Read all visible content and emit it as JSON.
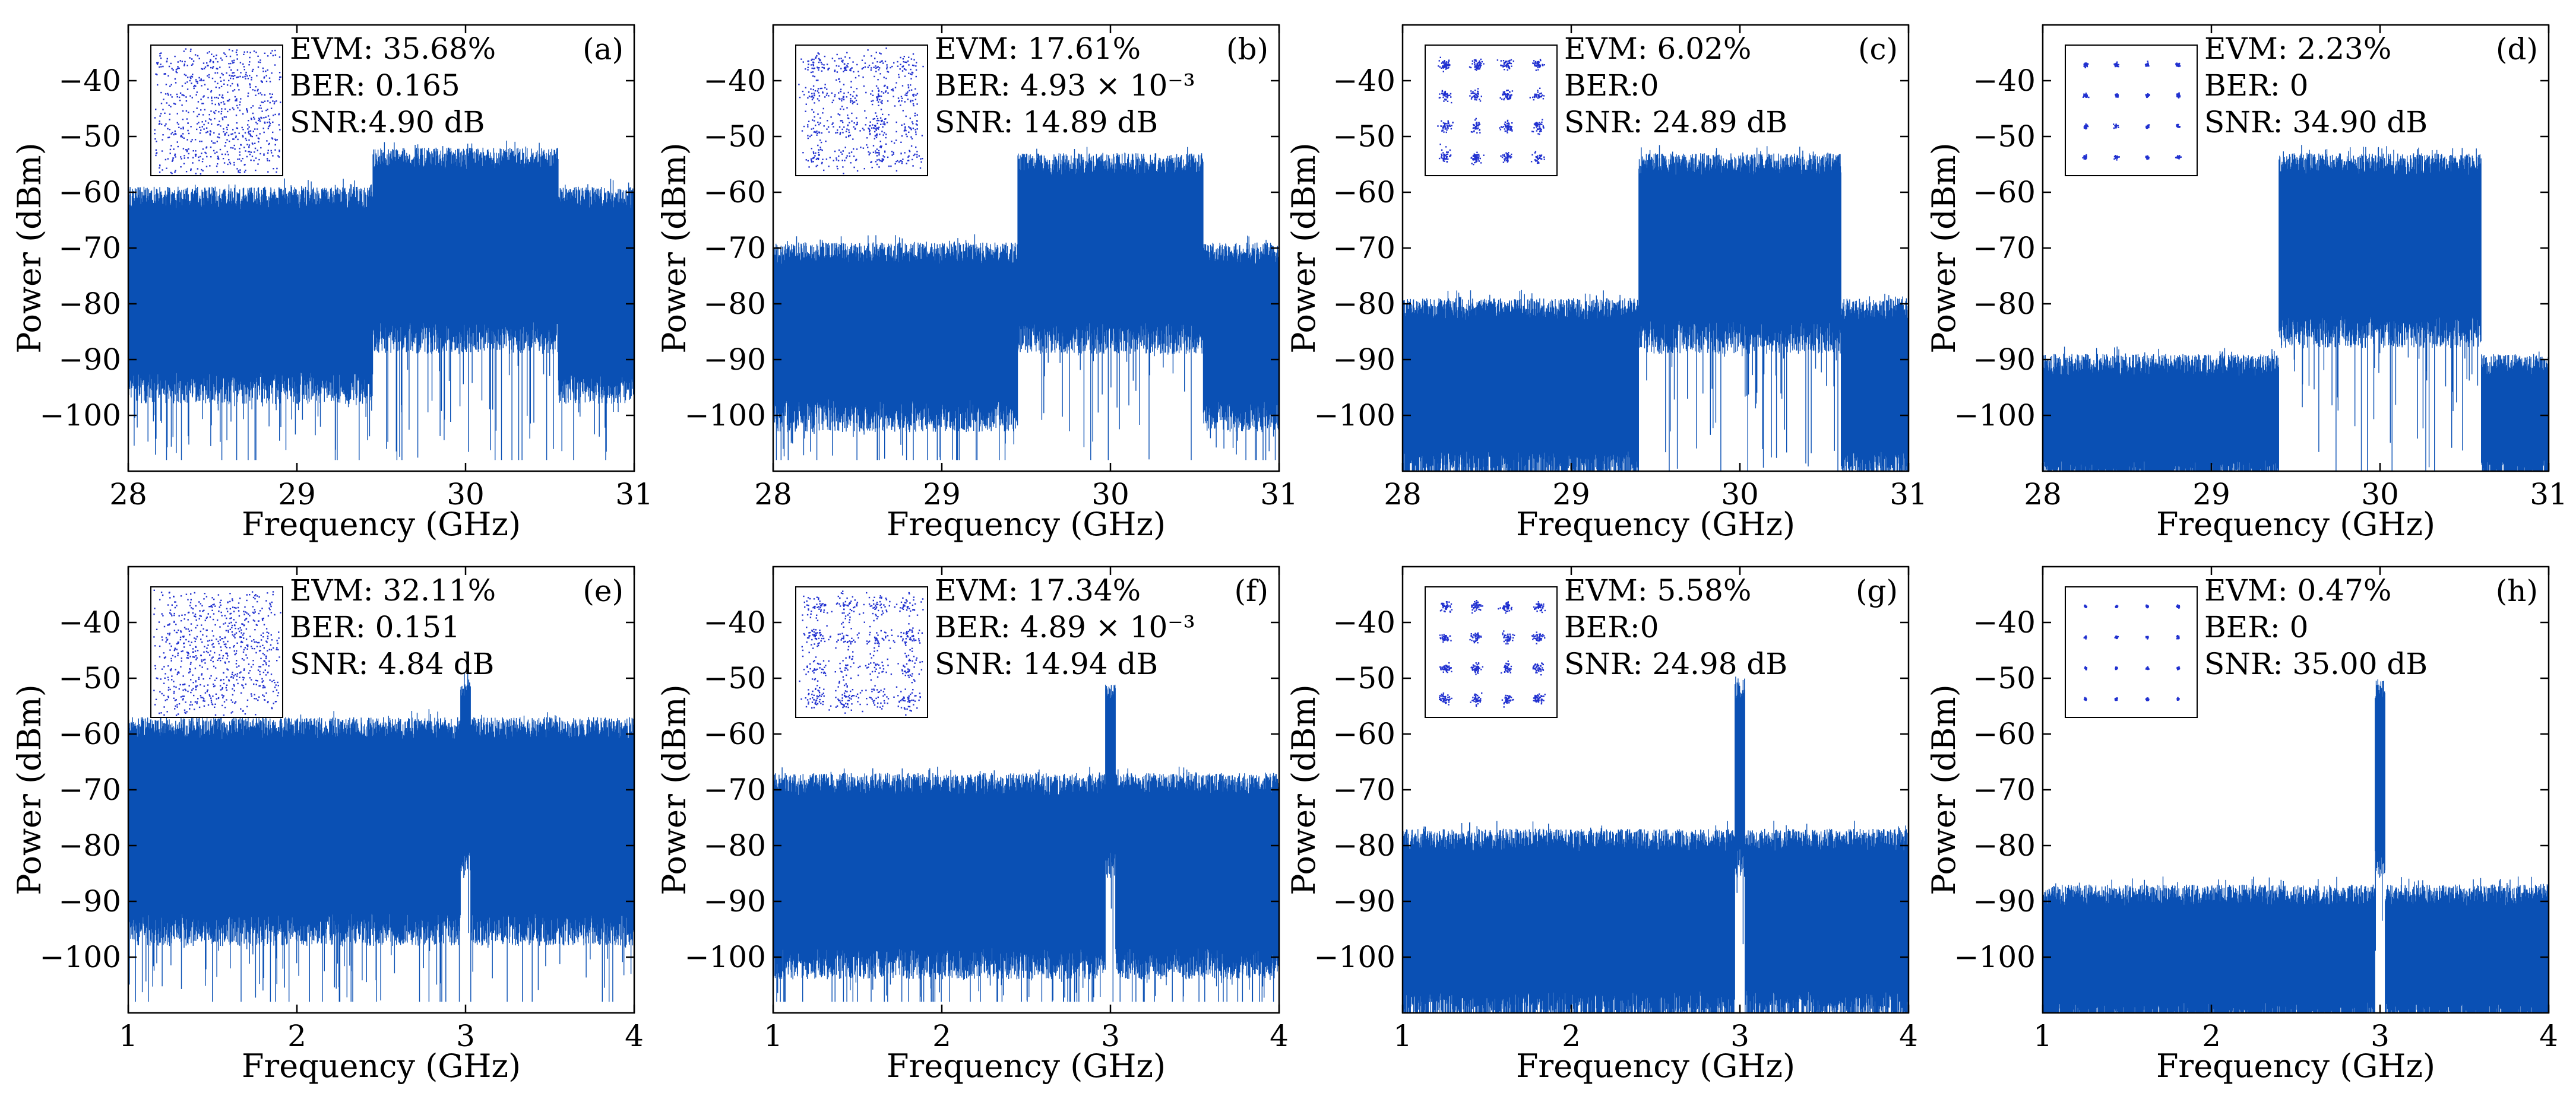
{
  "figure": {
    "series_color": "#0a50b4",
    "marker_color": "#2030d0",
    "panels_note": "Eight RF spectra with 16-QAM constellation insets"
  },
  "chart_data": [
    {
      "type": "line",
      "label": "(a)",
      "xlabel": "Frequency (GHz)",
      "ylabel": "Power (dBm)",
      "xlim": [
        28,
        31
      ],
      "ylim": [
        -110,
        -30
      ],
      "xticks": [
        "28",
        "29",
        "30",
        "31"
      ],
      "yticks": [
        "-40",
        "-50",
        "-60",
        "-70",
        "-80",
        "-90",
        "-100"
      ],
      "metrics": [
        "EVM: 35.68%",
        "BER: 0.165",
        "SNR:4.90 dB"
      ],
      "spectrum": {
        "shape": "wideband",
        "band": [
          29.45,
          30.55
        ],
        "floor_top": -61,
        "floor_bottom": -92,
        "band_top": -54,
        "band_bottom": -83,
        "spike_min": -108
      },
      "constellation": {
        "order": 16,
        "spread": 0.9
      }
    },
    {
      "type": "line",
      "label": "(b)",
      "xlabel": "Frequency (GHz)",
      "ylabel": "Power (dBm)",
      "xlim": [
        28,
        31
      ],
      "ylim": [
        -110,
        -30
      ],
      "xticks": [
        "28",
        "29",
        "30",
        "31"
      ],
      "yticks": [
        "-40",
        "-50",
        "-60",
        "-70",
        "-80",
        "-90",
        "-100"
      ],
      "metrics": [
        "EVM: 17.61%",
        "BER: 4.93 × 10⁻³",
        "SNR: 14.89 dB"
      ],
      "spectrum": {
        "shape": "wideband",
        "band": [
          29.45,
          30.55
        ],
        "floor_top": -71,
        "floor_bottom": -97,
        "band_top": -55,
        "band_bottom": -83,
        "spike_min": -108
      },
      "constellation": {
        "order": 16,
        "spread": 0.35
      }
    },
    {
      "type": "line",
      "label": "(c)",
      "xlabel": "Frequency (GHz)",
      "ylabel": "Power (dBm)",
      "xlim": [
        28,
        31
      ],
      "ylim": [
        -110,
        -30
      ],
      "xticks": [
        "28",
        "29",
        "30",
        "31"
      ],
      "yticks": [
        "-40",
        "-50",
        "-60",
        "-70",
        "-80",
        "-90",
        "-100"
      ],
      "metrics": [
        "EVM: 6.02%",
        "BER:0",
        "SNR: 24.89 dB"
      ],
      "spectrum": {
        "shape": "wideband",
        "band": [
          29.4,
          30.6
        ],
        "floor_top": -81,
        "floor_bottom": -106,
        "band_top": -55,
        "band_bottom": -83,
        "spike_min": -110
      },
      "constellation": {
        "order": 16,
        "spread": 0.14
      }
    },
    {
      "type": "line",
      "label": "(d)",
      "xlabel": "Frequency (GHz)",
      "ylabel": "Power (dBm)",
      "xlim": [
        28,
        31
      ],
      "ylim": [
        -110,
        -30
      ],
      "xticks": [
        "28",
        "29",
        "30",
        "31"
      ],
      "yticks": [
        "-40",
        "-50",
        "-60",
        "-70",
        "-80",
        "-90",
        "-100"
      ],
      "metrics": [
        "EVM: 2.23%",
        "BER: 0",
        "SNR: 34.90 dB"
      ],
      "spectrum": {
        "shape": "wideband",
        "band": [
          29.4,
          30.6
        ],
        "floor_top": -91,
        "floor_bottom": -108,
        "band_top": -55,
        "band_bottom": -82,
        "spike_min": -110
      },
      "constellation": {
        "order": 16,
        "spread": 0.05
      }
    },
    {
      "type": "line",
      "label": "(e)",
      "xlabel": "Frequency (GHz)",
      "ylabel": "Power (dBm)",
      "xlim": [
        1,
        4
      ],
      "ylim": [
        -110,
        -30
      ],
      "xticks": [
        "1",
        "2",
        "3",
        "4"
      ],
      "yticks": [
        "-40",
        "-50",
        "-60",
        "-70",
        "-80",
        "-90",
        "-100"
      ],
      "metrics": [
        "EVM: 32.11%",
        "BER: 0.151",
        "SNR: 4.84 dB"
      ],
      "spectrum": {
        "shape": "narrowband",
        "band": [
          2.97,
          3.03
        ],
        "floor_top": -59,
        "floor_bottom": -92,
        "band_top": -52,
        "band_bottom": -80,
        "spike_min": -108
      },
      "constellation": {
        "order": 16,
        "spread": 0.85
      }
    },
    {
      "type": "line",
      "label": "(f)",
      "xlabel": "Frequency (GHz)",
      "ylabel": "Power (dBm)",
      "xlim": [
        1,
        4
      ],
      "ylim": [
        -110,
        -30
      ],
      "xticks": [
        "1",
        "2",
        "3",
        "4"
      ],
      "yticks": [
        "-40",
        "-50",
        "-60",
        "-70",
        "-80",
        "-90",
        "-100"
      ],
      "metrics": [
        "EVM: 17.34%",
        "BER: 4.89 × 10⁻³",
        "SNR: 14.94 dB"
      ],
      "spectrum": {
        "shape": "narrowband",
        "band": [
          2.97,
          3.03
        ],
        "floor_top": -69,
        "floor_bottom": -98,
        "band_top": -53,
        "band_bottom": -80,
        "spike_min": -108
      },
      "constellation": {
        "order": 16,
        "spread": 0.33
      }
    },
    {
      "type": "line",
      "label": "(g)",
      "xlabel": "Frequency (GHz)",
      "ylabel": "Power (dBm)",
      "xlim": [
        1,
        4
      ],
      "ylim": [
        -110,
        -30
      ],
      "xticks": [
        "1",
        "2",
        "3",
        "4"
      ],
      "yticks": [
        "-40",
        "-50",
        "-60",
        "-70",
        "-80",
        "-90",
        "-100"
      ],
      "metrics": [
        "EVM: 5.58%",
        "BER:0",
        "SNR: 24.98 dB"
      ],
      "spectrum": {
        "shape": "narrowband",
        "band": [
          2.97,
          3.03
        ],
        "floor_top": -79,
        "floor_bottom": -106,
        "band_top": -52,
        "band_bottom": -80,
        "spike_min": -110
      },
      "constellation": {
        "order": 16,
        "spread": 0.13
      }
    },
    {
      "type": "line",
      "label": "(h)",
      "xlabel": "Frequency (GHz)",
      "ylabel": "Power (dBm)",
      "xlim": [
        1,
        4
      ],
      "ylim": [
        -110,
        -30
      ],
      "xticks": [
        "1",
        "2",
        "3",
        "4"
      ],
      "yticks": [
        "-40",
        "-50",
        "-60",
        "-70",
        "-80",
        "-90",
        "-100"
      ],
      "metrics": [
        "EVM: 0.47%",
        "BER: 0",
        "SNR: 35.00 dB"
      ],
      "spectrum": {
        "shape": "narrowband",
        "band": [
          2.97,
          3.03
        ],
        "floor_top": -89,
        "floor_bottom": -108,
        "band_top": -52,
        "band_bottom": -80,
        "spike_min": -110
      },
      "constellation": {
        "order": 16,
        "spread": 0.03
      }
    }
  ]
}
